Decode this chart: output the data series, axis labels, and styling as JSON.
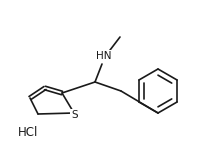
{
  "background_color": "#ffffff",
  "line_color": "#1a1a1a",
  "line_width": 1.2,
  "font_size": 7.5,
  "hcl_text": "HCl",
  "nh_text": "HN",
  "s_text": "S",
  "figsize": [
    1.99,
    1.49
  ],
  "dpi": 100
}
